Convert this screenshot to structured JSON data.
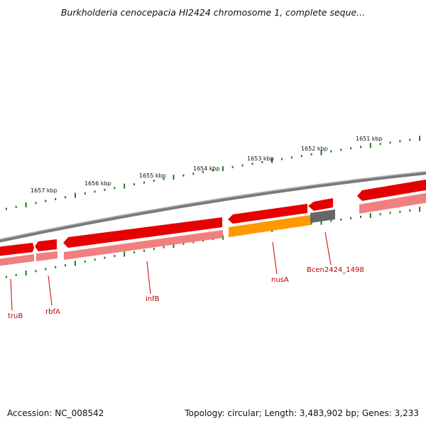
{
  "title": "Burkholderia cenocepacia HI2424 chromosome 1, complete seque...",
  "footer": {
    "accession": "Accession: NC_008542",
    "summary": "Topology: circular; Length: 3,483,902 bp; Genes: 3,233"
  },
  "colors": {
    "backbone": "#8a8a8a",
    "gene_forward": "#e60000",
    "gene_cds": "#f08080",
    "gene_orange": "#ff9900",
    "gene_gray": "#666666",
    "tick": "#1a7a1a",
    "label": "#c00000"
  },
  "scale_labels": [
    "1657 kbp",
    "1656 kbp",
    "1655 kbp",
    "1654 kbp",
    "1653 kbp",
    "1652 kbp",
    "1651 kbp"
  ],
  "genes": [
    {
      "label": "truB"
    },
    {
      "label": "rbfA"
    },
    {
      "label": "infB"
    },
    {
      "label": "nusA"
    },
    {
      "label": "Bcen2424_1498"
    }
  ]
}
